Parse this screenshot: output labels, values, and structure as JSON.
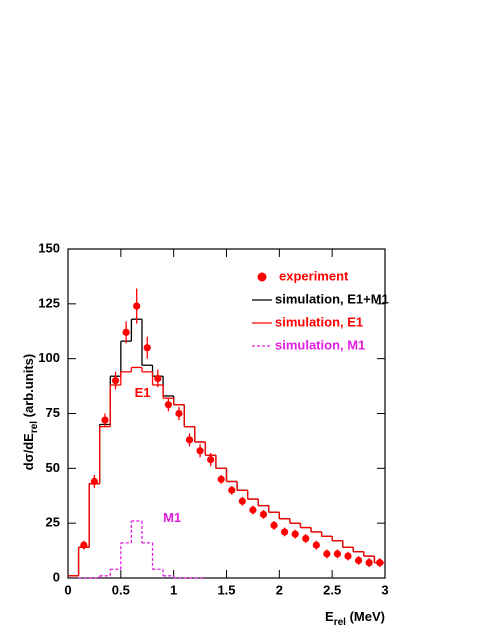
{
  "chart_data": {
    "type": "histogram",
    "xlabel": {
      "main": "E",
      "sub": "rel",
      "rest": " (MeV)"
    },
    "ylabel": {
      "main": "dσ/dE",
      "sub": "rel",
      "rest": " (arb.units)"
    },
    "xlim": [
      0,
      3
    ],
    "ylim": [
      0,
      150
    ],
    "xticks": [
      0,
      0.5,
      1,
      1.5,
      2,
      2.5,
      3
    ],
    "yticks": [
      0,
      25,
      50,
      75,
      100,
      125,
      150
    ],
    "bins": [
      0,
      0.1,
      0.2,
      0.3,
      0.4,
      0.5,
      0.6,
      0.7,
      0.8,
      0.9,
      1.0,
      1.1,
      1.2,
      1.3,
      1.4,
      1.5,
      1.6,
      1.7,
      1.8,
      1.9,
      2.0,
      2.1,
      2.2,
      2.3,
      2.4,
      2.5,
      2.6,
      2.7,
      2.8,
      2.9,
      3.0
    ],
    "series": [
      {
        "name": "simulation, E1+M1",
        "color": "#000000",
        "dashed": false,
        "values": [
          1,
          14,
          43,
          70,
          92,
          108,
          118,
          97,
          92,
          83,
          79,
          69,
          62,
          56,
          50,
          44,
          40,
          36,
          33,
          30,
          27,
          25,
          23,
          21,
          19,
          17,
          14,
          12,
          10,
          7
        ]
      },
      {
        "name": "simulation, E1",
        "color": "#ff0000",
        "dashed": false,
        "values": [
          1,
          14,
          43,
          69,
          88,
          94,
          96,
          94,
          88,
          82,
          79,
          69,
          62,
          56,
          50,
          44,
          40,
          36,
          33,
          30,
          27,
          25,
          23,
          21,
          19,
          17,
          14,
          12,
          10,
          7
        ]
      },
      {
        "name": "simulation, M1",
        "color": "#e020e0",
        "dashed": true,
        "values": [
          null,
          0,
          0,
          1,
          4,
          16,
          26,
          16,
          4,
          1,
          0,
          0,
          0,
          null,
          null,
          null,
          null,
          null,
          null,
          null,
          null,
          null,
          null,
          null,
          null,
          null,
          null,
          null,
          null,
          null
        ]
      }
    ],
    "points": {
      "name": "experiment",
      "color": "#ff0000",
      "x": [
        0.15,
        0.25,
        0.35,
        0.45,
        0.55,
        0.65,
        0.75,
        0.85,
        0.95,
        1.05,
        1.15,
        1.25,
        1.35,
        1.45,
        1.55,
        1.65,
        1.75,
        1.85,
        1.95,
        2.05,
        2.15,
        2.25,
        2.35,
        2.45,
        2.55,
        2.65,
        2.75,
        2.85,
        2.95
      ],
      "values": [
        15,
        44,
        72,
        90,
        112,
        124,
        105,
        91,
        79,
        75,
        63,
        58,
        54,
        45,
        40,
        35,
        31,
        29,
        24,
        21,
        20,
        18,
        15,
        11,
        11,
        10,
        8,
        7,
        7
      ],
      "errors": [
        2,
        3,
        3,
        4,
        5,
        8,
        5,
        4,
        3,
        3,
        3,
        3,
        3,
        2,
        2,
        2,
        2,
        2,
        2,
        2,
        2,
        2,
        2,
        2,
        2,
        2,
        2,
        2,
        2
      ]
    },
    "annotations": [
      {
        "text": "E1",
        "x": 0.63,
        "y": 84,
        "color": "#ff0000"
      },
      {
        "text": "M1",
        "x": 0.9,
        "y": 27,
        "color": "#e020e0"
      }
    ]
  }
}
